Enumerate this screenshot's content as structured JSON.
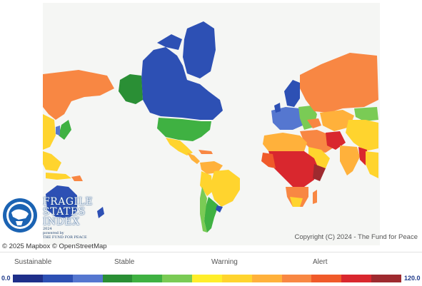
{
  "map": {
    "attribution": "© 2025 Mapbox © OpenStreetMap",
    "copyright": "Copyright (C) 2024 - The Fund for Peace",
    "colors": {
      "background": "#ffffff",
      "ocean": "#f5f6f4",
      "sustainable_dark": "#1e2f8a",
      "sustainable": "#2d50b4",
      "sustainable_light": "#5577d0",
      "stable_dark": "#2a8f35",
      "stable": "#3fb142",
      "stable_light": "#7acb55",
      "warning_light": "#ffee2a",
      "warning": "#ffd42e",
      "warning_dark": "#ffb13b",
      "alert_light": "#f88743",
      "alert": "#f05a2a",
      "alert_dark": "#d9272e",
      "alert_darkest": "#9e2a2f"
    }
  },
  "logo": {
    "line1": "FRAGILE",
    "line2": "STATES",
    "line3": "INDEX",
    "year": "2024",
    "sub1": "powered by",
    "sub2": "THE FUND FOR PEACE"
  },
  "legend": {
    "categories": [
      "Sustainable",
      "Stable",
      "Warning",
      "Alert"
    ],
    "min": "0.0",
    "max": "120.0",
    "steps": [
      "#1e2f8a",
      "#2d50b4",
      "#5577d0",
      "#2a8f35",
      "#3fb142",
      "#7acb55",
      "#ffee2a",
      "#ffd42e",
      "#ffb13b",
      "#f88743",
      "#f05a2a",
      "#d9272e",
      "#9e2a2f"
    ]
  }
}
